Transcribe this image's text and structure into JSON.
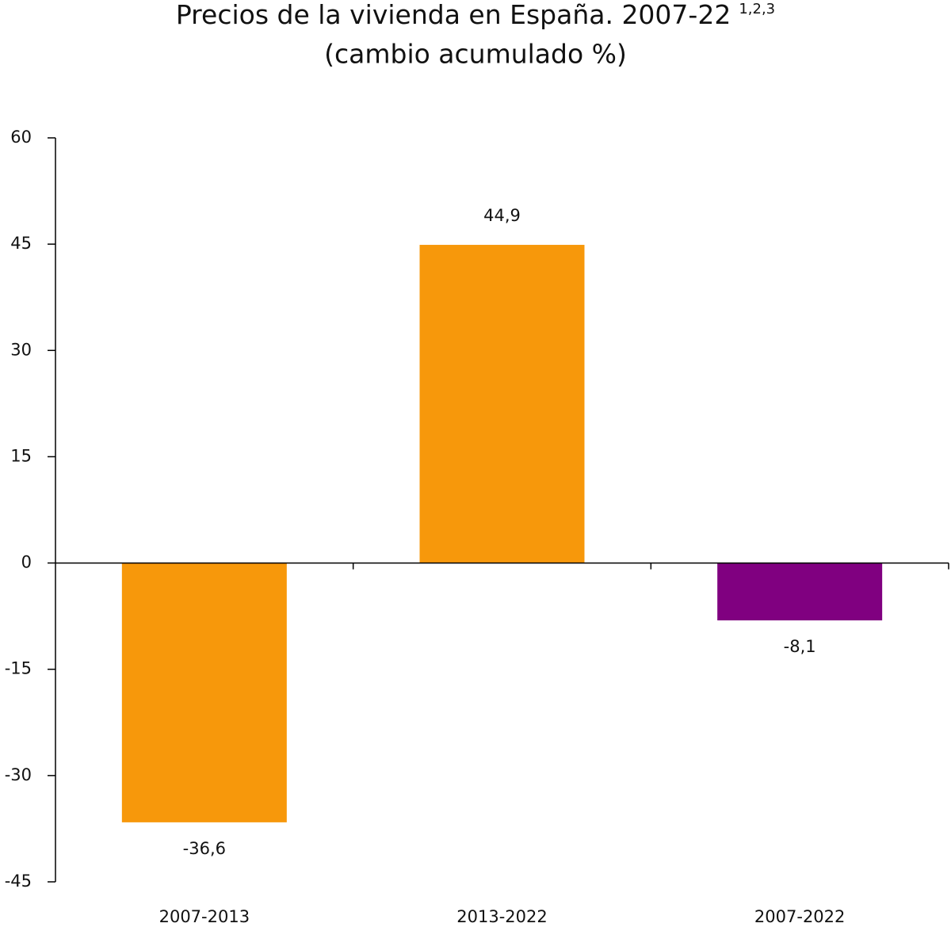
{
  "chart_data": {
    "type": "bar",
    "title": "Precios de la vivienda en España. 2007-22",
    "title_superscript": "1,2,3",
    "subtitle": "(cambio acumulado %)",
    "categories": [
      "2007-2013",
      "2013-2022",
      "2007-2022"
    ],
    "values": [
      -36.6,
      44.9,
      -8.1
    ],
    "value_labels": [
      "-36,6",
      "44,9",
      "-8,1"
    ],
    "colors": [
      "#f7980b",
      "#f7980b",
      "#800080"
    ],
    "ylim": [
      -45,
      60
    ],
    "yticks": [
      -45,
      -30,
      -15,
      0,
      15,
      30,
      45,
      60
    ],
    "grid": false
  }
}
